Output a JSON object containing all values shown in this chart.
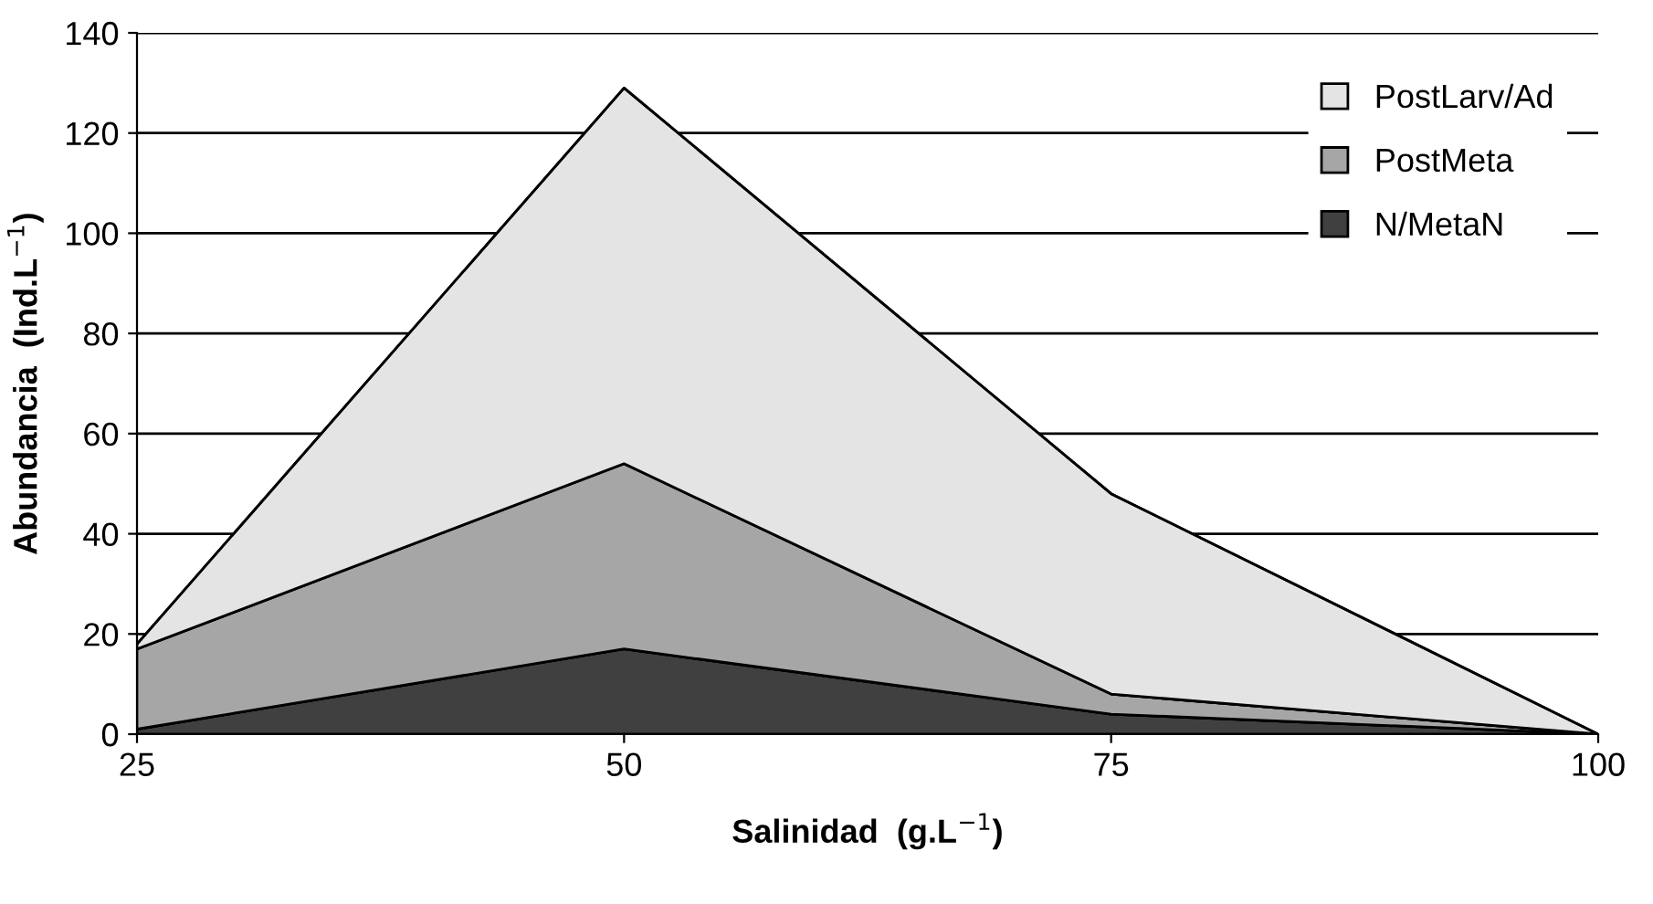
{
  "chart_data": {
    "type": "area",
    "stacked": true,
    "x": [
      25,
      50,
      75,
      100
    ],
    "series": [
      {
        "name": "N/MetaN",
        "color": "#404040",
        "values": [
          1,
          17,
          4,
          0
        ]
      },
      {
        "name": "PostMeta",
        "color": "#a6a6a6",
        "values": [
          16,
          37,
          4,
          0
        ]
      },
      {
        "name": "PostLarv/Ad",
        "color": "#e4e4e4",
        "values": [
          1,
          75,
          40,
          0
        ]
      }
    ],
    "xlabel": "Salinidad  (g.L$^{−1}$)",
    "ylabel": "Abundancia  (Ind.L$^{−1}$)",
    "xlim": [
      25,
      100
    ],
    "xticks": [
      25,
      50,
      75,
      100
    ],
    "ylim": [
      0,
      140
    ],
    "yticks": [
      0,
      20,
      40,
      60,
      80,
      100,
      120,
      140
    ],
    "grid": "y",
    "legend": "top right"
  }
}
